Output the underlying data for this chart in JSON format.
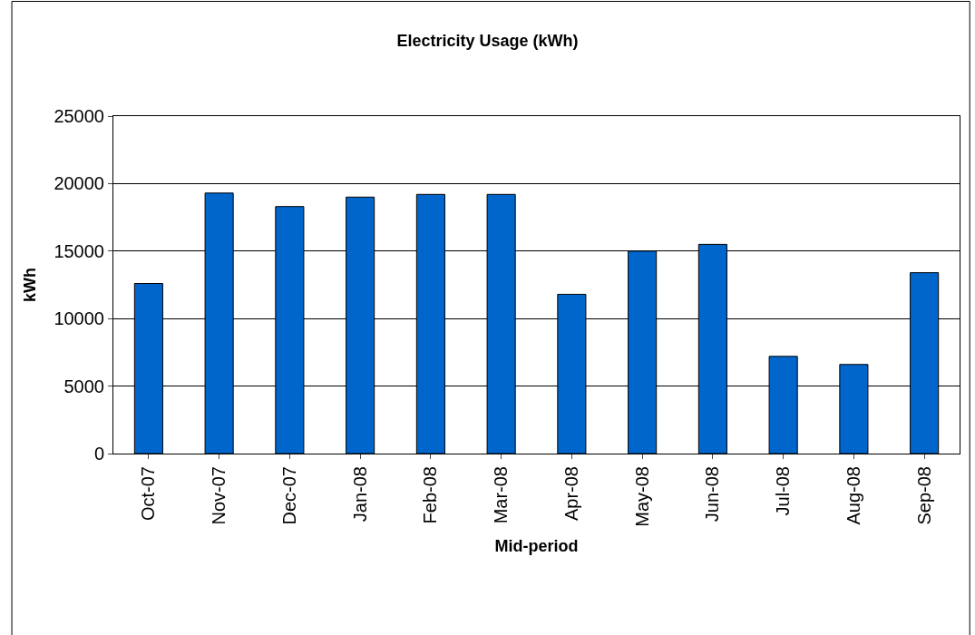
{
  "chart_data": {
    "type": "bar",
    "title": "Electricity Usage (kWh)",
    "xlabel": "Mid-period",
    "ylabel": "kWh",
    "categories": [
      "Oct-07",
      "Nov-07",
      "Dec-07",
      "Jan-08",
      "Feb-08",
      "Mar-08",
      "Apr-08",
      "May-08",
      "Jun-08",
      "Jul-08",
      "Aug-08",
      "Sep-08"
    ],
    "values": [
      12600,
      19300,
      18300,
      19000,
      19200,
      19200,
      11800,
      15000,
      15500,
      7200,
      6600,
      13400
    ],
    "color": "#0066cc",
    "ylim": [
      0,
      25000
    ],
    "yticks": [
      0,
      5000,
      10000,
      15000,
      20000,
      25000
    ],
    "grid": "y",
    "legend": false
  }
}
